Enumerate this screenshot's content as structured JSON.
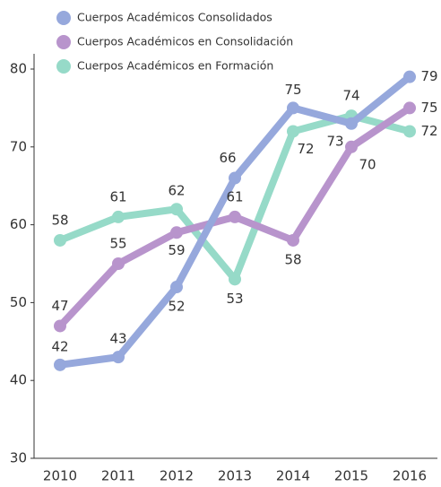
{
  "chart_data": {
    "type": "line",
    "categories": [
      "2010",
      "2011",
      "2012",
      "2013",
      "2014",
      "2015",
      "2016"
    ],
    "series": [
      {
        "name": "Cuerpos Académicos Consolidados",
        "color": "#96a8dc",
        "values": [
          42,
          43,
          52,
          66,
          75,
          73,
          79
        ]
      },
      {
        "name": "Cuerpos Académicos en Consolidación",
        "color": "#b894cc",
        "values": [
          47,
          55,
          59,
          61,
          58,
          70,
          75
        ]
      },
      {
        "name": "Cuerpos Académicos en Formación",
        "color": "#96dac8",
        "values": [
          58,
          61,
          62,
          53,
          72,
          74,
          72
        ]
      }
    ],
    "ylim": [
      30,
      80
    ],
    "yticks": [
      30,
      40,
      50,
      60,
      70,
      80
    ]
  }
}
